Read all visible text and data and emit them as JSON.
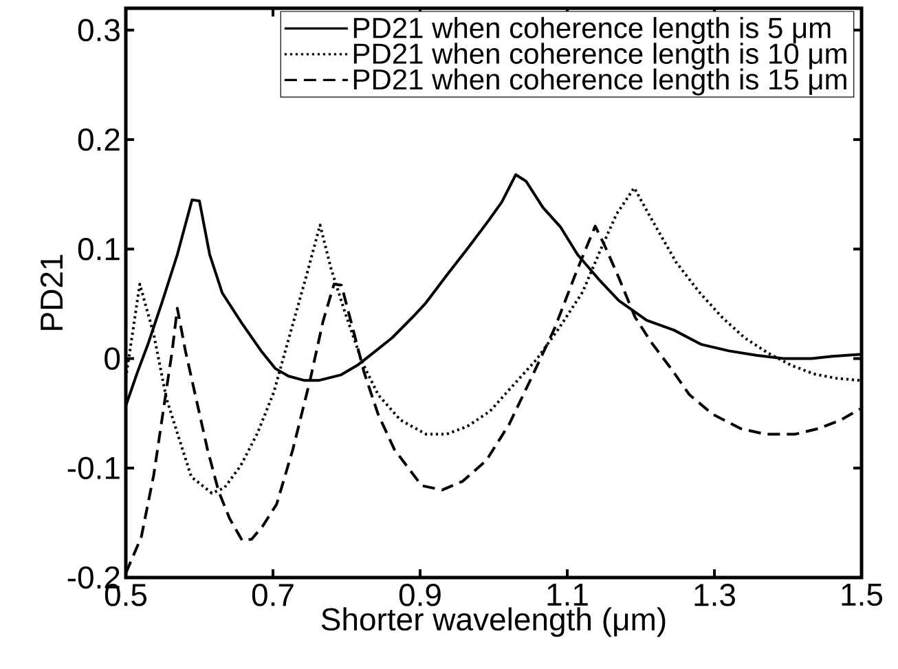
{
  "chart_data": {
    "type": "line",
    "xlabel": "Shorter wavelength (μm)",
    "ylabel": "PD21",
    "xlim": [
      0.5,
      1.5
    ],
    "ylim": [
      -0.2,
      0.32
    ],
    "xticks": [
      0.5,
      0.7,
      0.9,
      1.1,
      1.3,
      1.5
    ],
    "yticks": [
      -0.2,
      -0.1,
      0,
      0.1,
      0.2,
      0.3
    ],
    "legend": "top right",
    "series": [
      {
        "name": "PD21 when coherence length is 5 μm",
        "color": "#000000",
        "line_style": "solid",
        "x": [
          0.5,
          0.516,
          0.53,
          0.549,
          0.57,
          0.59,
          0.6,
          0.614,
          0.631,
          0.658,
          0.684,
          0.703,
          0.721,
          0.743,
          0.762,
          0.792,
          0.815,
          0.834,
          0.862,
          0.89,
          0.908,
          0.936,
          0.965,
          0.993,
          1.011,
          1.03,
          1.044,
          1.067,
          1.091,
          1.114,
          1.142,
          1.17,
          1.208,
          1.245,
          1.282,
          1.32,
          1.357,
          1.394,
          1.432,
          1.46,
          1.5
        ],
        "values": [
          -0.043,
          -0.012,
          0.013,
          0.051,
          0.095,
          0.145,
          0.144,
          0.095,
          0.06,
          0.032,
          0.007,
          -0.009,
          -0.016,
          -0.02,
          -0.02,
          -0.015,
          -0.006,
          0.004,
          0.019,
          0.038,
          0.051,
          0.076,
          0.101,
          0.126,
          0.143,
          0.168,
          0.162,
          0.138,
          0.12,
          0.095,
          0.073,
          0.053,
          0.035,
          0.026,
          0.013,
          0.007,
          0.003,
          0,
          0,
          0.002,
          0.004
        ]
      },
      {
        "name": "PD21 when coherence length is 10 μm",
        "color": "#000000",
        "line_style": "dotted",
        "x": [
          0.5,
          0.519,
          0.538,
          0.555,
          0.57,
          0.589,
          0.617,
          0.634,
          0.656,
          0.679,
          0.701,
          0.723,
          0.746,
          0.764,
          0.779,
          0.798,
          0.821,
          0.843,
          0.873,
          0.908,
          0.936,
          0.964,
          0.995,
          1.027,
          1.058,
          1.089,
          1.121,
          1.145,
          1.167,
          1.191,
          1.214,
          1.248,
          1.279,
          1.31,
          1.341,
          1.373,
          1.404,
          1.435,
          1.466,
          1.498
        ],
        "values": [
          -0.018,
          0.068,
          0.022,
          -0.036,
          -0.068,
          -0.108,
          -0.123,
          -0.118,
          -0.098,
          -0.068,
          -0.031,
          0.022,
          0.077,
          0.122,
          0.082,
          0.042,
          -0.003,
          -0.033,
          -0.056,
          -0.069,
          -0.069,
          -0.062,
          -0.048,
          -0.024,
          -0.001,
          0.028,
          0.061,
          0.099,
          0.132,
          0.156,
          0.128,
          0.088,
          0.061,
          0.038,
          0.019,
          0.005,
          -0.006,
          -0.014,
          -0.018,
          -0.02
        ]
      },
      {
        "name": "PD21 when coherence length is 15 μm",
        "color": "#000000",
        "line_style": "dashed",
        "x": [
          0.5,
          0.521,
          0.538,
          0.553,
          0.563,
          0.57,
          0.581,
          0.596,
          0.611,
          0.626,
          0.641,
          0.658,
          0.671,
          0.686,
          0.705,
          0.727,
          0.75,
          0.768,
          0.783,
          0.793,
          0.806,
          0.824,
          0.843,
          0.865,
          0.902,
          0.93,
          0.958,
          0.99,
          1.021,
          1.051,
          1.083,
          1.114,
          1.138,
          1.151,
          1.17,
          1.192,
          1.214,
          1.242,
          1.266,
          1.298,
          1.336,
          1.369,
          1.41,
          1.441,
          1.472,
          1.498
        ],
        "values": [
          -0.196,
          -0.163,
          -0.106,
          -0.038,
          0.007,
          0.046,
          0.007,
          -0.038,
          -0.083,
          -0.121,
          -0.146,
          -0.166,
          -0.165,
          -0.153,
          -0.133,
          -0.083,
          -0.021,
          0.034,
          0.068,
          0.067,
          0.034,
          -0.013,
          -0.051,
          -0.083,
          -0.116,
          -0.12,
          -0.112,
          -0.093,
          -0.06,
          -0.018,
          0.028,
          0.082,
          0.121,
          0.103,
          0.074,
          0.038,
          0.015,
          -0.01,
          -0.033,
          -0.051,
          -0.064,
          -0.069,
          -0.069,
          -0.064,
          -0.056,
          -0.046
        ]
      }
    ]
  }
}
